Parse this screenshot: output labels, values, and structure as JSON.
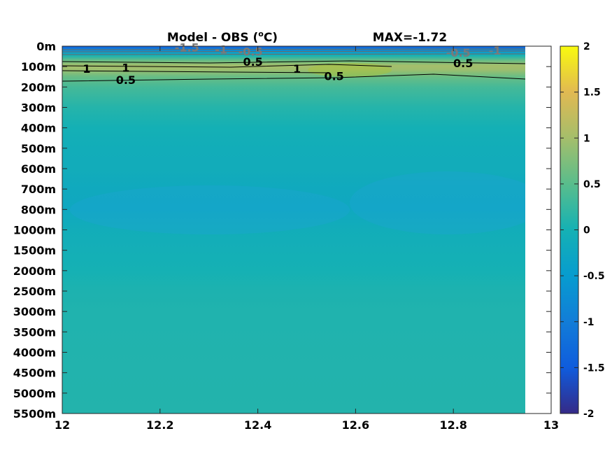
{
  "chart_data": {
    "type": "heatmap",
    "title": "Model - OBS (",
    "title_sup": "o",
    "title_tail": "C)",
    "annotation": "MAX=-1.72",
    "x_ticks": [
      12,
      12.2,
      12.4,
      12.6,
      12.8,
      13
    ],
    "x_tick_labels": [
      "12",
      "12.2",
      "12.4",
      "12.6",
      "12.8",
      "13"
    ],
    "xlim": [
      12,
      13
    ],
    "data_x_max": 12.95,
    "y_tick_labels": [
      "0m",
      "100m",
      "200m",
      "300m",
      "400m",
      "500m",
      "600m",
      "700m",
      "800m",
      "1000m",
      "1500m",
      "2000m",
      "2500m",
      "3000m",
      "3500m",
      "4000m",
      "4500m",
      "5000m",
      "5500m"
    ],
    "colorbar": {
      "min": -2,
      "max": 2,
      "ticks": [
        2,
        1.5,
        1,
        0.5,
        0,
        -0.5,
        -1,
        -1.5,
        -2
      ],
      "tick_labels": [
        "2",
        "1.5",
        "1",
        "0.5",
        "0",
        "-0.5",
        "-1",
        "-1.5",
        "-2"
      ],
      "colormap": "parula"
    },
    "depth_profile": [
      {
        "depth_index": 0.0,
        "value": -1.5
      },
      {
        "depth_index": 0.1,
        "value": -1.1
      },
      {
        "depth_index": 0.25,
        "value": -0.6
      },
      {
        "depth_index": 0.45,
        "value": 0.0
      },
      {
        "depth_index": 0.7,
        "value": 0.6
      },
      {
        "depth_index": 0.95,
        "value": 1.0
      },
      {
        "depth_index": 1.15,
        "value": 0.95
      },
      {
        "depth_index": 1.5,
        "value": 0.6
      },
      {
        "depth_index": 2.0,
        "value": 0.35
      },
      {
        "depth_index": 3.0,
        "value": 0.12
      },
      {
        "depth_index": 4.0,
        "value": -0.02
      },
      {
        "depth_index": 5.0,
        "value": -0.1
      },
      {
        "depth_index": 6.0,
        "value": -0.12
      },
      {
        "depth_index": 7.0,
        "value": -0.18
      },
      {
        "depth_index": 8.0,
        "value": -0.22
      },
      {
        "depth_index": 9.0,
        "value": -0.1
      },
      {
        "depth_index": 10.0,
        "value": -0.05
      },
      {
        "depth_index": 11.0,
        "value": 0.0
      },
      {
        "depth_index": 12.0,
        "value": 0.06
      },
      {
        "depth_index": 13.0,
        "value": 0.08
      },
      {
        "depth_index": 18.0,
        "value": 0.1
      }
    ],
    "contour_labels": [
      {
        "text": "-1.5",
        "x": 12.255,
        "depth_index": 0.05,
        "color": "#7a7a7a"
      },
      {
        "text": "-1",
        "x": 12.325,
        "depth_index": 0.15,
        "color": "#7a7a7a"
      },
      {
        "text": "-0.5",
        "x": 12.385,
        "depth_index": 0.25,
        "color": "#7a7a7a"
      },
      {
        "text": "0.5",
        "x": 12.39,
        "depth_index": 0.75,
        "color": "#000000"
      },
      {
        "text": "-0.5",
        "x": 12.81,
        "depth_index": 0.3,
        "color": "#7a7a7a"
      },
      {
        "text": "-1",
        "x": 12.885,
        "depth_index": 0.2,
        "color": "#7a7a7a"
      },
      {
        "text": "0.5",
        "x": 12.82,
        "depth_index": 0.82,
        "color": "#000000"
      },
      {
        "text": "1",
        "x": 12.05,
        "depth_index": 1.1,
        "color": "#000000"
      },
      {
        "text": "1",
        "x": 12.13,
        "depth_index": 1.05,
        "color": "#000000"
      },
      {
        "text": "1",
        "x": 12.48,
        "depth_index": 1.1,
        "color": "#000000"
      },
      {
        "text": "0.5",
        "x": 12.13,
        "depth_index": 1.65,
        "color": "#000000"
      },
      {
        "text": "0.5",
        "x": 12.556,
        "depth_index": 1.45,
        "color": "#000000"
      }
    ]
  }
}
